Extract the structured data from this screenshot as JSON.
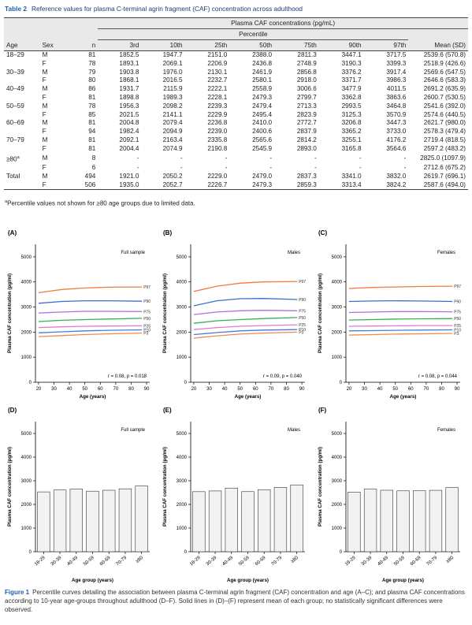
{
  "table": {
    "label": "Table 2",
    "title": "Reference values for plasma C-terminal agrin fragment (CAF) concentration across adulthood",
    "group_header": "Plasma CAF concentrations (pg/mL)",
    "sub_header": "Percentile",
    "columns": [
      "Age",
      "Sex",
      "n",
      "3rd",
      "10th",
      "25th",
      "50th",
      "75th",
      "90th",
      "97th",
      "Mean (SD)"
    ],
    "rows": [
      [
        "18–29",
        "M",
        "81",
        "1852.5",
        "1947.7",
        "2151.0",
        "2388.0",
        "2811.3",
        "3447.1",
        "3717.5",
        "2539.6 (570.8)"
      ],
      [
        null,
        "F",
        "78",
        "1893.1",
        "2069.1",
        "2206.9",
        "2436.8",
        "2748.9",
        "3190.3",
        "3399.3",
        "2518.9 (426.6)"
      ],
      [
        "30–39",
        "M",
        "79",
        "1903.8",
        "1976.0",
        "2130.1",
        "2461.9",
        "2856.8",
        "3376.2",
        "3917.4",
        "2569.6 (547.5)"
      ],
      [
        null,
        "F",
        "80",
        "1868.1",
        "2016.5",
        "2232.7",
        "2580.1",
        "2918.0",
        "3371.7",
        "3986.3",
        "2646.6 (583.3)"
      ],
      [
        "40–49",
        "M",
        "86",
        "1931.7",
        "2115.9",
        "2222.1",
        "2558.9",
        "3006.6",
        "3477.9",
        "4011.5",
        "2691.2 (635.9)"
      ],
      [
        null,
        "F",
        "81",
        "1898.8",
        "1989.3",
        "2228.1",
        "2479.3",
        "2799.7",
        "3362.8",
        "3863.6",
        "2600.7 (530.5)"
      ],
      [
        "50–59",
        "M",
        "78",
        "1956.3",
        "2098.2",
        "2239.3",
        "2479.4",
        "2713.3",
        "2993.5",
        "3464.8",
        "2541.6 (392.0)"
      ],
      [
        null,
        "F",
        "85",
        "2021.5",
        "2141.1",
        "2229.9",
        "2495.4",
        "2823.9",
        "3125.3",
        "3570.9",
        "2574.6 (440.5)"
      ],
      [
        "60–69",
        "M",
        "81",
        "2004.8",
        "2079.4",
        "2236.8",
        "2410.0",
        "2772.7",
        "3206.8",
        "3447.3",
        "2621.7 (980.0)"
      ],
      [
        null,
        "F",
        "94",
        "1982.4",
        "2094.9",
        "2239.0",
        "2400.6",
        "2837.9",
        "3365.2",
        "3733.0",
        "2578.3 (479.4)"
      ],
      [
        "70–79",
        "M",
        "81",
        "2092.1",
        "2163.4",
        "2335.8",
        "2565.6",
        "2814.2",
        "3255.1",
        "4176.2",
        "2719.4 (818.5)"
      ],
      [
        null,
        "F",
        "81",
        "2004.4",
        "2074.9",
        "2190.8",
        "2545.9",
        "2893.0",
        "3165.8",
        "3564.6",
        "2597.2 (483.2)"
      ],
      [
        {
          "text": "≥80",
          "note": "a"
        },
        "M",
        "8",
        "-",
        "-",
        "-",
        "-",
        "-",
        "-",
        "-",
        "2825.0 (1097.9)"
      ],
      [
        null,
        "F",
        "6",
        "-",
        "-",
        "-",
        "-",
        "-",
        "-",
        "-",
        "2712.6 (675.2)"
      ],
      [
        "Total",
        "M",
        "494",
        "1921.0",
        "2050.2",
        "2229.0",
        "2479.0",
        "2837.3",
        "3341.0",
        "3832.0",
        "2619.7 (696.1)"
      ],
      [
        null,
        "F",
        "506",
        "1935.0",
        "2052.7",
        "2226.7",
        "2479.3",
        "2859.3",
        "3313.4",
        "3824.2",
        "2587.6 (494.0)"
      ]
    ],
    "footnote": {
      "marker": "a",
      "text": "Percentile values not shown for ≥80 age groups due to limited data."
    }
  },
  "chart_data": [
    {
      "type": "line",
      "panel": "(A)",
      "annotation": "Full sample",
      "stat": "r = 0.08, p = 0.018",
      "x_label": "Age (years)",
      "y_label": "Plasma CAF concentration (pg/ml)",
      "xlim": [
        18,
        92
      ],
      "xticks": [
        20,
        30,
        40,
        50,
        60,
        70,
        80,
        90
      ],
      "ylim": [
        0,
        5500
      ],
      "yticks": [
        0,
        1000,
        2000,
        3000,
        4000,
        5000
      ],
      "x": [
        20,
        35,
        50,
        65,
        87
      ],
      "series": [
        {
          "name": "P97",
          "color": "#ef7d3c",
          "values": [
            3570,
            3700,
            3760,
            3790,
            3800
          ]
        },
        {
          "name": "P90",
          "color": "#3a6fcf",
          "values": [
            3150,
            3220,
            3250,
            3250,
            3230
          ]
        },
        {
          "name": "P75",
          "color": "#b56fd6",
          "values": [
            2760,
            2800,
            2830,
            2830,
            2820
          ]
        },
        {
          "name": "P50",
          "color": "#2fb34a",
          "values": [
            2420,
            2470,
            2500,
            2520,
            2550
          ]
        },
        {
          "name": "P25",
          "color": "#e07ad0",
          "values": [
            2180,
            2210,
            2230,
            2240,
            2250
          ]
        },
        {
          "name": "P10",
          "color": "#4a7ad8",
          "values": [
            1970,
            2010,
            2050,
            2070,
            2090
          ]
        },
        {
          "name": "P3",
          "color": "#f08a50",
          "values": [
            1820,
            1860,
            1900,
            1930,
            1960
          ]
        }
      ]
    },
    {
      "type": "line",
      "panel": "(B)",
      "annotation": "Males",
      "stat": "r = 0.09, p = 0.040",
      "x_label": "Age (years)",
      "y_label": "Plasma CAF concentration (pg/ml)",
      "xlim": [
        18,
        92
      ],
      "xticks": [
        20,
        30,
        40,
        50,
        60,
        70,
        80,
        90
      ],
      "ylim": [
        0,
        5500
      ],
      "yticks": [
        0,
        1000,
        2000,
        3000,
        4000,
        5000
      ],
      "x": [
        20,
        35,
        50,
        65,
        87
      ],
      "series": [
        {
          "name": "P97",
          "color": "#ef7d3c",
          "values": [
            3620,
            3830,
            3950,
            4000,
            4020
          ]
        },
        {
          "name": "P90",
          "color": "#3a6fcf",
          "values": [
            3050,
            3250,
            3330,
            3340,
            3300
          ]
        },
        {
          "name": "P75",
          "color": "#b56fd6",
          "values": [
            2700,
            2800,
            2850,
            2870,
            2850
          ]
        },
        {
          "name": "P50",
          "color": "#2fb34a",
          "values": [
            2350,
            2450,
            2500,
            2540,
            2580
          ]
        },
        {
          "name": "P25",
          "color": "#e07ad0",
          "values": [
            2100,
            2180,
            2230,
            2260,
            2290
          ]
        },
        {
          "name": "P10",
          "color": "#4a7ad8",
          "values": [
            1900,
            1980,
            2050,
            2080,
            2100
          ]
        },
        {
          "name": "P3",
          "color": "#f08a50",
          "values": [
            1760,
            1850,
            1920,
            1960,
            2000
          ]
        }
      ]
    },
    {
      "type": "line",
      "panel": "(C)",
      "annotation": "Females",
      "stat": "r = 0.08, p = 0.044",
      "x_label": "Age (years)",
      "y_label": "Plasma CAF concentration (pg/ml)",
      "xlim": [
        18,
        92
      ],
      "xticks": [
        20,
        30,
        40,
        50,
        60,
        70,
        80,
        90
      ],
      "ylim": [
        0,
        5500
      ],
      "yticks": [
        0,
        1000,
        2000,
        3000,
        4000,
        5000
      ],
      "x": [
        20,
        35,
        50,
        65,
        87
      ],
      "series": [
        {
          "name": "P97",
          "color": "#ef7d3c",
          "values": [
            3740,
            3780,
            3800,
            3820,
            3830
          ]
        },
        {
          "name": "P90",
          "color": "#3a6fcf",
          "values": [
            3220,
            3240,
            3250,
            3240,
            3220
          ]
        },
        {
          "name": "P75",
          "color": "#b56fd6",
          "values": [
            2780,
            2800,
            2820,
            2820,
            2810
          ]
        },
        {
          "name": "P50",
          "color": "#2fb34a",
          "values": [
            2480,
            2500,
            2520,
            2530,
            2540
          ]
        },
        {
          "name": "P25",
          "color": "#e07ad0",
          "values": [
            2230,
            2240,
            2250,
            2260,
            2260
          ]
        },
        {
          "name": "P10",
          "color": "#4a7ad8",
          "values": [
            2050,
            2060,
            2070,
            2080,
            2090
          ]
        },
        {
          "name": "P3",
          "color": "#f08a50",
          "values": [
            1880,
            1900,
            1920,
            1930,
            1950
          ]
        }
      ]
    },
    {
      "type": "bar",
      "panel": "(D)",
      "annotation": "Full sample",
      "x_label": "Age group (years)",
      "y_label": "Plasma CAF concentration (pg/ml)",
      "categories": [
        "18-29",
        "30-39",
        "40-49",
        "50-59",
        "60-69",
        "70-79",
        "≥80"
      ],
      "values": [
        2530,
        2610,
        2650,
        2560,
        2600,
        2660,
        2780
      ],
      "color": "#f2f2f2",
      "ylim": [
        0,
        5500
      ],
      "yticks": [
        0,
        1000,
        2000,
        3000,
        4000,
        5000
      ]
    },
    {
      "type": "bar",
      "panel": "(E)",
      "annotation": "Males",
      "x_label": "Age group (years)",
      "y_label": "Plasma CAF concentration (pg/ml)",
      "categories": [
        "18-29",
        "30-39",
        "40-49",
        "50-59",
        "60-69",
        "70-79",
        "≥80"
      ],
      "values": [
        2539.6,
        2569.6,
        2691.2,
        2541.6,
        2621.7,
        2719.4,
        2825.0
      ],
      "color": "#f2f2f2",
      "ylim": [
        0,
        5500
      ],
      "yticks": [
        0,
        1000,
        2000,
        3000,
        4000,
        5000
      ]
    },
    {
      "type": "bar",
      "panel": "(F)",
      "annotation": "Females",
      "x_label": "Age group (years)",
      "y_label": "Plasma CAF concentration (pg/ml)",
      "categories": [
        "18-29",
        "30-39",
        "40-49",
        "50-59",
        "60-69",
        "70-79",
        "≥80"
      ],
      "values": [
        2518.9,
        2646.6,
        2600.7,
        2574.6,
        2578.3,
        2597.2,
        2712.6
      ],
      "color": "#f2f2f2",
      "ylim": [
        0,
        5500
      ],
      "yticks": [
        0,
        1000,
        2000,
        3000,
        4000,
        5000
      ]
    }
  ],
  "caption": {
    "label": "Figure 1",
    "text": "Percentile curves detailing the association between plasma C-terminal agrin fragment (CAF) concentration and age (A–C); and plasma CAF concentrations according to 10-year age-groups throughout adulthood (D–F). Solid lines in (D)–(F) represent mean of each group; no statistically significant differences were observed."
  }
}
